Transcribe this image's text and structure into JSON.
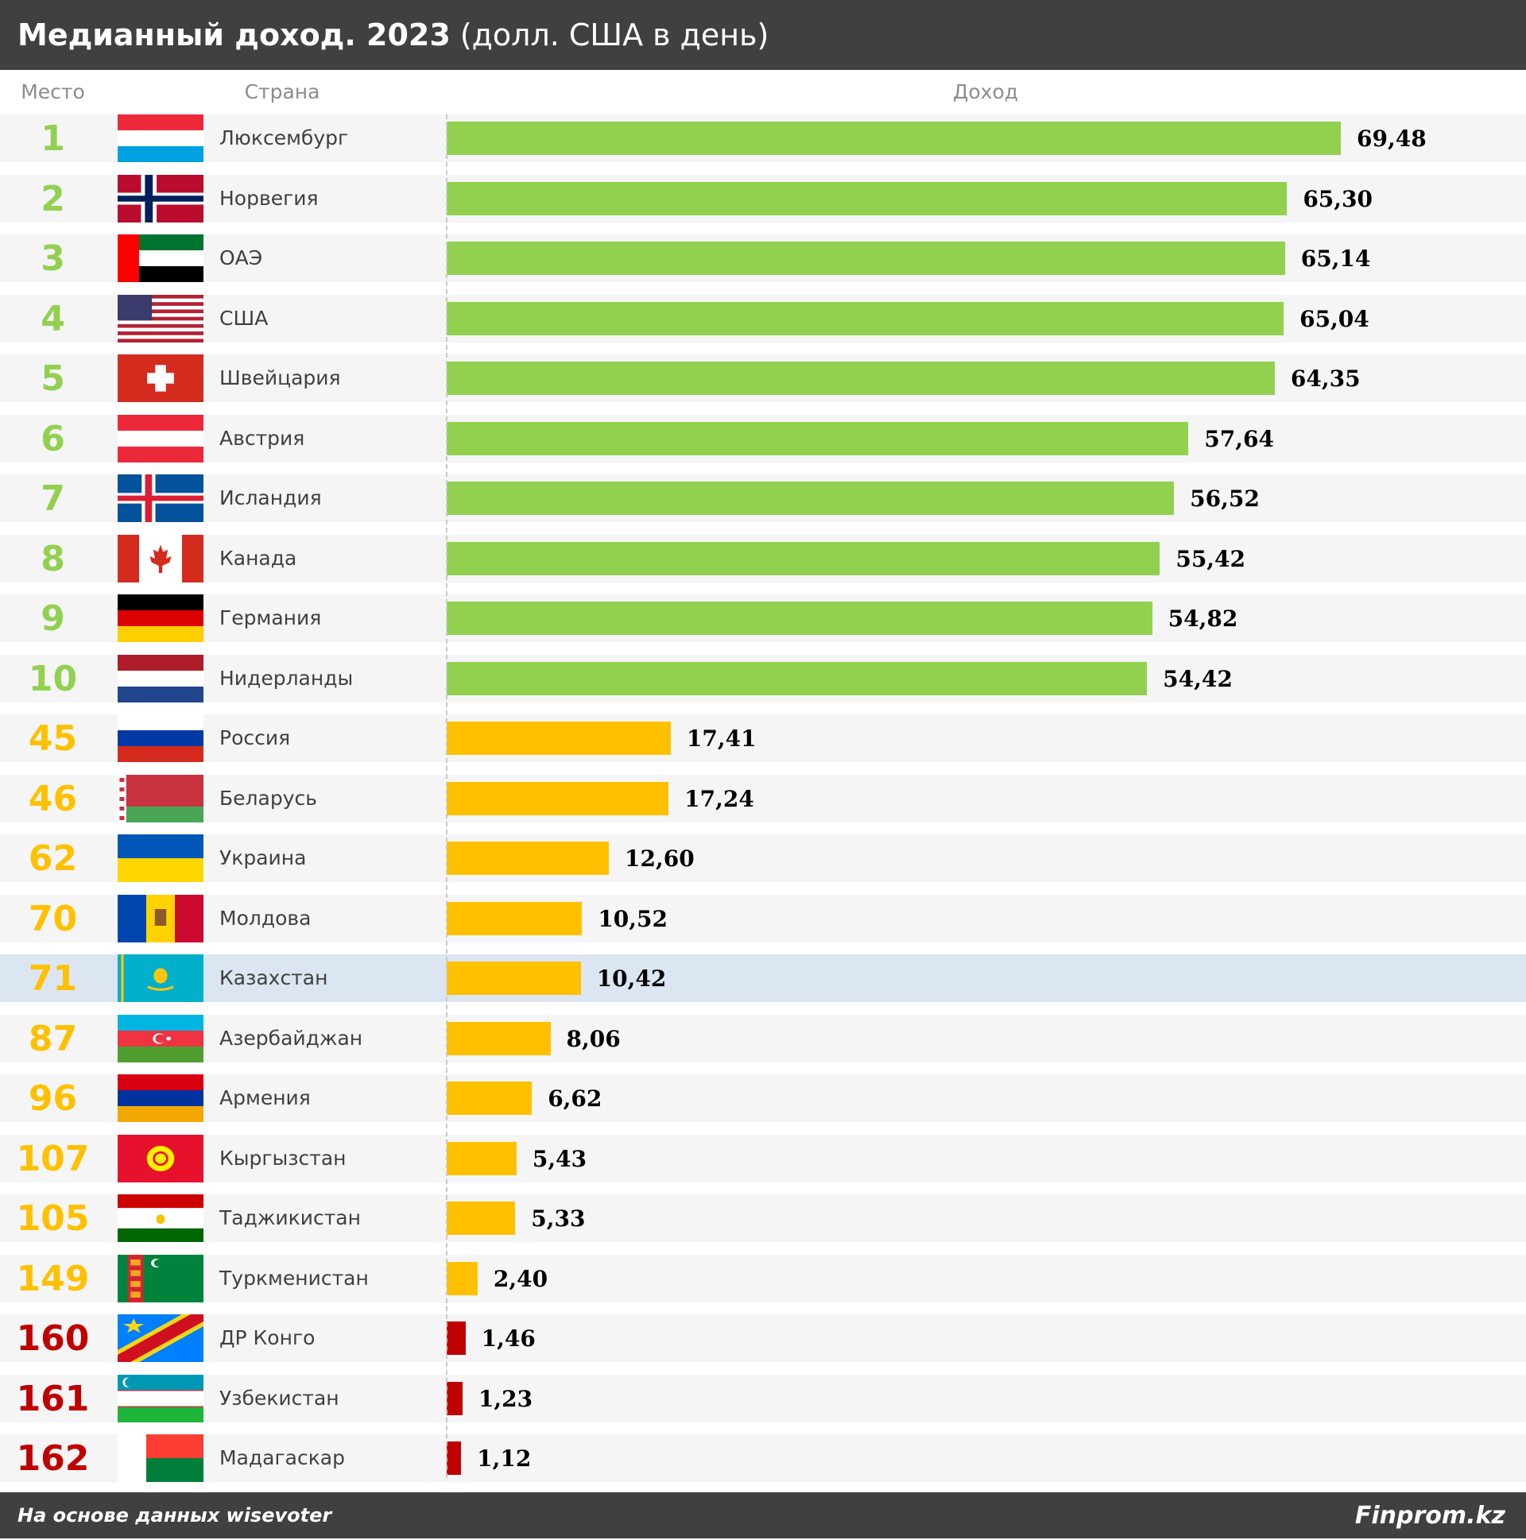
{
  "title": "Медианный доход. 2023",
  "subtitle": "(долл. США в день)",
  "columns": {
    "rank": "Место",
    "country": "Страна",
    "income": "Доход"
  },
  "highlighted_row": "Казахстан",
  "colors": {
    "top10": "#92d050",
    "mid": "#ffc000",
    "low": "#c00000",
    "highlight_row": "#dce6f2"
  },
  "chart_data": {
    "type": "bar",
    "orientation": "horizontal",
    "title": "Медианный доход. 2023",
    "subtitle": "(долл. США в день)",
    "xlabel": "Доход",
    "ylabel": "Страна",
    "xlim": [
      0,
      69.48
    ],
    "grid": false,
    "legend": "none",
    "rows": [
      {
        "rank": "1",
        "country": "Люксембург",
        "value": 69.48,
        "label": "69,48",
        "tier": "top10",
        "flag": "lu"
      },
      {
        "rank": "2",
        "country": "Норвегия",
        "value": 65.3,
        "label": "65,30",
        "tier": "top10",
        "flag": "no"
      },
      {
        "rank": "3",
        "country": "ОАЭ",
        "value": 65.14,
        "label": "65,14",
        "tier": "top10",
        "flag": "ae"
      },
      {
        "rank": "4",
        "country": "США",
        "value": 65.04,
        "label": "65,04",
        "tier": "top10",
        "flag": "us"
      },
      {
        "rank": "5",
        "country": "Швейцария",
        "value": 64.35,
        "label": "64,35",
        "tier": "top10",
        "flag": "ch"
      },
      {
        "rank": "6",
        "country": "Австрия",
        "value": 57.64,
        "label": "57,64",
        "tier": "top10",
        "flag": "at"
      },
      {
        "rank": "7",
        "country": "Исландия",
        "value": 56.52,
        "label": "56,52",
        "tier": "top10",
        "flag": "is"
      },
      {
        "rank": "8",
        "country": "Канада",
        "value": 55.42,
        "label": "55,42",
        "tier": "top10",
        "flag": "ca"
      },
      {
        "rank": "9",
        "country": "Германия",
        "value": 54.82,
        "label": "54,82",
        "tier": "top10",
        "flag": "de"
      },
      {
        "rank": "10",
        "country": "Нидерланды",
        "value": 54.42,
        "label": "54,42",
        "tier": "top10",
        "flag": "nl"
      },
      {
        "rank": "45",
        "country": "Россия",
        "value": 17.41,
        "label": "17,41",
        "tier": "mid",
        "flag": "ru"
      },
      {
        "rank": "46",
        "country": "Беларусь",
        "value": 17.24,
        "label": "17,24",
        "tier": "mid",
        "flag": "by"
      },
      {
        "rank": "62",
        "country": "Украина",
        "value": 12.6,
        "label": "12,60",
        "tier": "mid",
        "flag": "ua"
      },
      {
        "rank": "70",
        "country": "Молдова",
        "value": 10.52,
        "label": "10,52",
        "tier": "mid",
        "flag": "md"
      },
      {
        "rank": "71",
        "country": "Казахстан",
        "value": 10.42,
        "label": "10,42",
        "tier": "mid",
        "flag": "kz"
      },
      {
        "rank": "87",
        "country": "Азербайджан",
        "value": 8.06,
        "label": "8,06",
        "tier": "mid",
        "flag": "az"
      },
      {
        "rank": "96",
        "country": "Армения",
        "value": 6.62,
        "label": "6,62",
        "tier": "mid",
        "flag": "am"
      },
      {
        "rank": "107",
        "country": "Кыргызстан",
        "value": 5.43,
        "label": "5,43",
        "tier": "mid",
        "flag": "kg"
      },
      {
        "rank": "105",
        "country": "Таджикистан",
        "value": 5.33,
        "label": "5,33",
        "tier": "mid",
        "flag": "tj"
      },
      {
        "rank": "149",
        "country": "Туркменистан",
        "value": 2.4,
        "label": "2,40",
        "tier": "mid",
        "flag": "tm"
      },
      {
        "rank": "160",
        "country": "ДР Конго",
        "value": 1.46,
        "label": "1,46",
        "tier": "low",
        "flag": "cd"
      },
      {
        "rank": "161",
        "country": "Узбекистан",
        "value": 1.23,
        "label": "1,23",
        "tier": "low",
        "flag": "uz"
      },
      {
        "rank": "162",
        "country": "Мадагаскар",
        "value": 1.12,
        "label": "1,12",
        "tier": "low",
        "flag": "mg"
      }
    ]
  },
  "footer": {
    "source": "На основе данных wisevoter",
    "brand": "Finprom.kz"
  }
}
